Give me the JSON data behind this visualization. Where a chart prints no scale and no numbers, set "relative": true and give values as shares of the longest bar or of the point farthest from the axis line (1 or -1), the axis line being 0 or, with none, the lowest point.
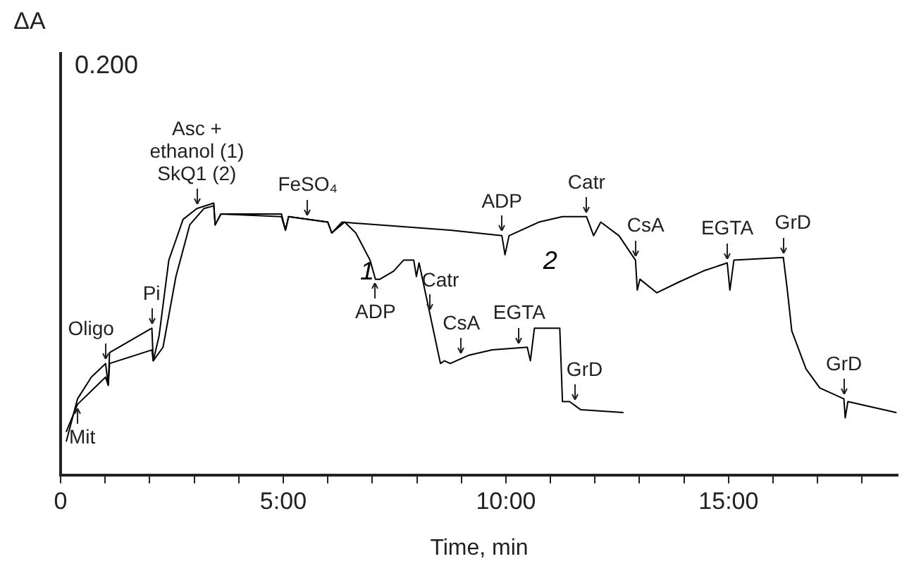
{
  "chart_data": {
    "type": "line",
    "relative": true,
    "xlabel": "Time, min",
    "xlim": [
      0,
      18.8
    ],
    "xticks": [
      {
        "value": 0,
        "label": "0"
      },
      {
        "value": 1,
        "label": null
      },
      {
        "value": 2,
        "label": null
      },
      {
        "value": 3,
        "label": null
      },
      {
        "value": 4,
        "label": null
      },
      {
        "value": 5,
        "label": "5:00"
      },
      {
        "value": 6,
        "label": null
      },
      {
        "value": 7,
        "label": null
      },
      {
        "value": 8,
        "label": null
      },
      {
        "value": 9,
        "label": null
      },
      {
        "value": 10,
        "label": "10:00"
      },
      {
        "value": 11,
        "label": null
      },
      {
        "value": 12,
        "label": null
      },
      {
        "value": 13,
        "label": null
      },
      {
        "value": 14,
        "label": null
      },
      {
        "value": 15,
        "label": "15:00"
      },
      {
        "value": 16,
        "label": null
      },
      {
        "value": 17,
        "label": null
      },
      {
        "value": 18,
        "label": null
      }
    ],
    "grid": false,
    "legend": false,
    "marker": "none",
    "line_style": "solid",
    "series": [
      {
        "name": "1",
        "color": "#000000",
        "x": [
          0.13,
          0.38,
          0.69,
          1.01,
          1.07,
          1.1,
          2.05,
          2.08,
          2.21,
          2.43,
          2.75,
          3.06,
          3.44,
          3.47,
          3.6,
          4.96,
          5.05,
          5.12,
          6.0,
          6.09,
          6.38,
          6.63,
          6.95,
          7.07,
          7.17,
          7.48,
          7.7,
          7.93,
          7.99,
          8.05,
          8.53,
          8.62,
          8.75,
          9.16,
          9.69,
          10.48,
          10.55,
          10.64,
          11.21,
          11.27,
          11.43,
          11.68,
          12.63
        ],
        "values": [
          0.125,
          0.28,
          0.36,
          0.41,
          0.33,
          0.45,
          0.54,
          0.42,
          0.51,
          0.79,
          0.94,
          0.98,
          1.0,
          0.92,
          0.96,
          0.96,
          0.9,
          0.95,
          0.93,
          0.89,
          0.93,
          0.89,
          0.79,
          0.72,
          0.72,
          0.75,
          0.79,
          0.79,
          0.73,
          0.78,
          0.41,
          0.42,
          0.41,
          0.44,
          0.46,
          0.47,
          0.42,
          0.54,
          0.54,
          0.27,
          0.27,
          0.24,
          0.23
        ]
      },
      {
        "name": "2",
        "color": "#000000",
        "x": [
          0.13,
          0.38,
          1.01,
          1.07,
          1.1,
          2.05,
          2.08,
          2.3,
          2.59,
          2.9,
          3.22,
          3.44,
          3.47,
          3.6,
          4.96,
          5.05,
          5.12,
          6.0,
          6.09,
          6.32,
          8.75,
          9.91,
          9.98,
          10.07,
          10.74,
          11.27,
          11.81,
          11.97,
          12.13,
          12.54,
          12.91,
          12.95,
          13.01,
          13.39,
          13.89,
          14.43,
          14.97,
          15.03,
          15.12,
          16.23,
          16.32,
          16.42,
          16.74,
          17.05,
          17.59,
          17.62,
          17.68,
          18.76
        ],
        "values": [
          0.16,
          0.26,
          0.36,
          0.33,
          0.41,
          0.46,
          0.42,
          0.47,
          0.73,
          0.92,
          0.98,
          0.99,
          0.92,
          0.96,
          0.95,
          0.9,
          0.95,
          0.93,
          0.89,
          0.93,
          0.9,
          0.88,
          0.81,
          0.88,
          0.93,
          0.95,
          0.95,
          0.88,
          0.93,
          0.88,
          0.79,
          0.68,
          0.72,
          0.67,
          0.71,
          0.75,
          0.78,
          0.68,
          0.79,
          0.8,
          0.68,
          0.53,
          0.39,
          0.32,
          0.28,
          0.21,
          0.27,
          0.23
        ]
      }
    ],
    "annotations": [
      "ΔA",
      "0.200",
      {
        "text": "Mit",
        "x": 0.38,
        "y": 0.26
      },
      {
        "text": "Oligo",
        "x": 1.01,
        "y": 0.41
      },
      {
        "text": "Pi",
        "x": 2.05,
        "y": 0.54
      },
      {
        "text": "Asc +\nethanol (1)\nSkQ1 (2)",
        "x": 3.06,
        "y": 0.98
      },
      {
        "text": "FeSO₄",
        "x": 5.55,
        "y": 0.94
      },
      {
        "text": "ADP",
        "x": 7.07,
        "y": 0.72
      },
      {
        "text": "Catr",
        "x": 8.3,
        "y": 0.59
      },
      {
        "text": "CsA",
        "x": 9.0,
        "y": 0.43
      },
      {
        "text": "EGTA",
        "x": 10.3,
        "y": 0.47
      },
      {
        "text": "GrD",
        "x": 11.55,
        "y": 0.26
      },
      {
        "text": "ADP",
        "x": 9.91,
        "y": 0.88
      },
      {
        "text": "Catr",
        "x": 11.81,
        "y": 0.95
      },
      {
        "text": "CsA",
        "x": 12.91,
        "y": 0.79
      },
      {
        "text": "EGTA",
        "x": 14.97,
        "y": 0.78
      },
      {
        "text": "GrD",
        "x": 16.23,
        "y": 0.8
      },
      {
        "text": "GrD",
        "x": 17.59,
        "y": 0.28
      }
    ]
  }
}
